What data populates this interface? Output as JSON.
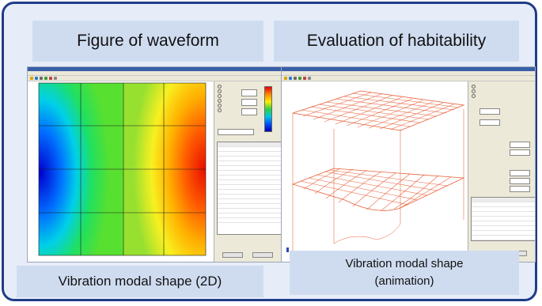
{
  "left": {
    "title": "Figure of waveform",
    "caption": "Vibration modal shape (2D)"
  },
  "right": {
    "title": "Evaluation of habitability",
    "caption_line1": "Vibration modal shape",
    "caption_line2": "(animation)"
  },
  "colors": {
    "frame_border": "#1f3c88",
    "frame_fill": "#e6edf8",
    "title_fill": "#cfdcf0",
    "mesh": "#e8603a"
  },
  "icons": [
    "titlebar-icon",
    "toolbar-icons",
    "color-scale-legend"
  ]
}
